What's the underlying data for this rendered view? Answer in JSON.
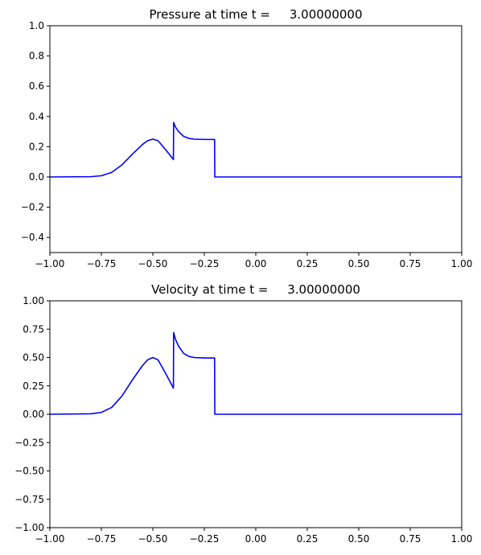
{
  "chart_data": [
    {
      "type": "line",
      "title": "Pressure at time t =     3.00000000",
      "xlabel": "",
      "ylabel": "",
      "xlim": [
        -1.0,
        1.0
      ],
      "ylim": [
        -0.5,
        1.0
      ],
      "xticks": [
        "−1.00",
        "−0.75",
        "−0.50",
        "−0.25",
        "0.00",
        "0.25",
        "0.50",
        "0.75",
        "1.00"
      ],
      "yticks": [
        "−0.4",
        "−0.2",
        "0.0",
        "0.2",
        "0.4",
        "0.6",
        "0.8",
        "1.0"
      ],
      "grid": false,
      "line_color": "#0000ff",
      "series": [
        {
          "x": [
            -1.0,
            -0.8,
            -0.75,
            -0.7,
            -0.65,
            -0.6,
            -0.55,
            -0.525,
            -0.5,
            -0.475,
            -0.45,
            -0.42,
            -0.4,
            -0.399,
            -0.39,
            -0.375,
            -0.35,
            -0.325,
            -0.3,
            -0.25,
            -0.2,
            -0.199,
            0.0,
            0.5,
            1.0
          ],
          "y": [
            0.0,
            0.002,
            0.008,
            0.03,
            0.08,
            0.15,
            0.215,
            0.24,
            0.25,
            0.24,
            0.2,
            0.15,
            0.115,
            0.36,
            0.33,
            0.3,
            0.268,
            0.255,
            0.25,
            0.248,
            0.248,
            0.0,
            0.0,
            0.0,
            0.0
          ]
        }
      ]
    },
    {
      "type": "line",
      "title": "Velocity at time t =     3.00000000",
      "xlabel": "",
      "ylabel": "",
      "xlim": [
        -1.0,
        1.0
      ],
      "ylim": [
        -1.0,
        1.0
      ],
      "xticks": [
        "−1.00",
        "−0.75",
        "−0.50",
        "−0.25",
        "0.00",
        "0.25",
        "0.50",
        "0.75",
        "1.00"
      ],
      "yticks": [
        "−1.00",
        "−0.75",
        "−0.50",
        "−0.25",
        "0.00",
        "0.25",
        "0.50",
        "0.75",
        "1.00"
      ],
      "grid": false,
      "line_color": "#0000ff",
      "series": [
        {
          "x": [
            -1.0,
            -0.8,
            -0.75,
            -0.7,
            -0.65,
            -0.6,
            -0.55,
            -0.525,
            -0.5,
            -0.475,
            -0.45,
            -0.42,
            -0.4,
            -0.399,
            -0.39,
            -0.375,
            -0.35,
            -0.325,
            -0.3,
            -0.25,
            -0.2,
            -0.199,
            0.0,
            0.5,
            1.0
          ],
          "y": [
            0.0,
            0.004,
            0.016,
            0.06,
            0.16,
            0.3,
            0.43,
            0.48,
            0.5,
            0.48,
            0.4,
            0.3,
            0.23,
            0.72,
            0.66,
            0.6,
            0.536,
            0.51,
            0.5,
            0.496,
            0.496,
            0.0,
            0.0,
            0.0,
            0.0
          ]
        }
      ]
    }
  ]
}
